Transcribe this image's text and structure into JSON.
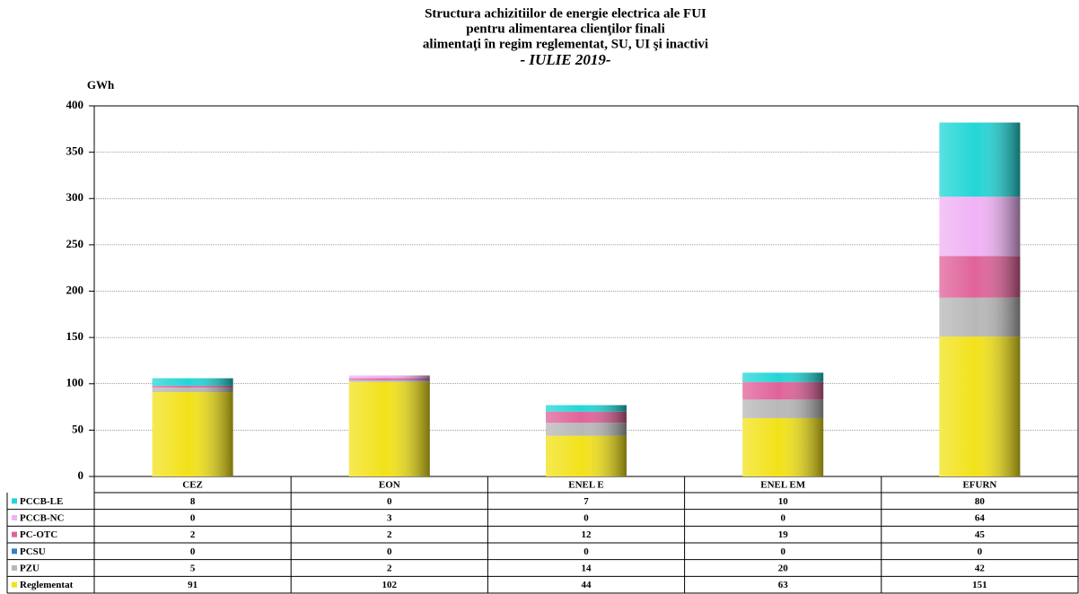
{
  "chart_data": {
    "type": "stacked_bar",
    "title": [
      "Structura achizitiilor de energie electrica ale FUI",
      "pentru alimentarea clienţilor finali",
      "alimentaţi în regim reglementat, SU, UI şi inactivi"
    ],
    "subtitle": "- IULIE 2019-",
    "y_label": "GWh",
    "categories": [
      "CEZ",
      "EON",
      "ENEL E",
      "ENEL EM",
      "EFURN"
    ],
    "series": [
      {
        "name": "Reglementat",
        "color": "#f2e21a",
        "values": [
          91,
          102,
          44,
          63,
          151
        ]
      },
      {
        "name": "PZU",
        "color": "#b8b8b8",
        "values": [
          5,
          2,
          14,
          20,
          42
        ]
      },
      {
        "name": "PCSU",
        "color": "#3a7fc0",
        "values": [
          0,
          0,
          0,
          0,
          0
        ]
      },
      {
        "name": "PC-OTC",
        "color": "#e0629a",
        "values": [
          2,
          2,
          12,
          19,
          45
        ]
      },
      {
        "name": "PCCB-NC",
        "color": "#f0b2f5",
        "values": [
          0,
          3,
          0,
          0,
          64
        ]
      },
      {
        "name": "PCCB-LE",
        "color": "#22d6d6",
        "values": [
          8,
          0,
          7,
          10,
          80
        ]
      }
    ],
    "ylim": [
      0,
      400
    ],
    "yticks": [
      0,
      50,
      100,
      150,
      200,
      250,
      300,
      350,
      400
    ],
    "grid": true
  }
}
